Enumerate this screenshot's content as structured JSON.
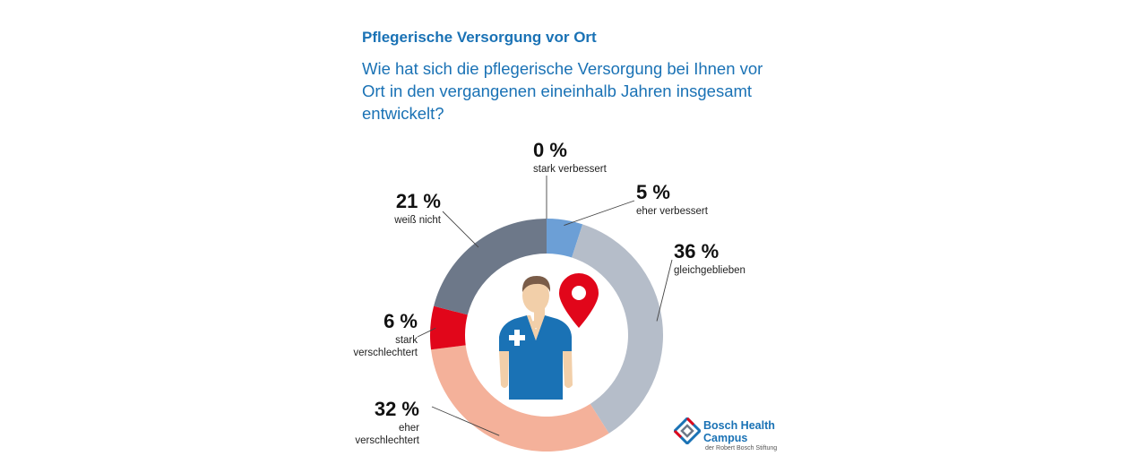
{
  "header": {
    "title": "Pflegerische Versorgung vor Ort",
    "question": "Wie hat sich die pflegerische Versorgung bei Ihnen vor Ort in den vergangenen eineinhalb Jahren insgesamt entwickelt?"
  },
  "chart_data": {
    "type": "pie",
    "variant": "donut",
    "unit": "%",
    "slices": [
      {
        "label": "stark verbessert",
        "value": 0,
        "display": "0 %",
        "color": "#1a72b5"
      },
      {
        "label": "eher verbessert",
        "value": 5,
        "display": "5 %",
        "color": "#6c9fd6"
      },
      {
        "label": "gleichgeblieben",
        "value": 36,
        "display": "36 %",
        "color": "#b5bdc9"
      },
      {
        "label": "eher verschlechtert",
        "value": 32,
        "display": "32 %",
        "color": "#f4b19a"
      },
      {
        "label": "stark verschlechtert",
        "value": 6,
        "display": "6 %",
        "color": "#e1061a"
      },
      {
        "label": "weiß nicht",
        "value": 21,
        "display": "21 %",
        "color": "#6d7889"
      }
    ]
  },
  "illustration": {
    "icons": [
      "nurse-icon",
      "location-pin-icon"
    ],
    "colors": {
      "scrubs": "#1a72b5",
      "skin": "#f2cfa9",
      "hair": "#7a5c48",
      "pin": "#e1061a"
    }
  },
  "logo": {
    "name_line1": "Bosch Health",
    "name_line2": "Campus",
    "subline": "der Robert Bosch Stiftung"
  }
}
